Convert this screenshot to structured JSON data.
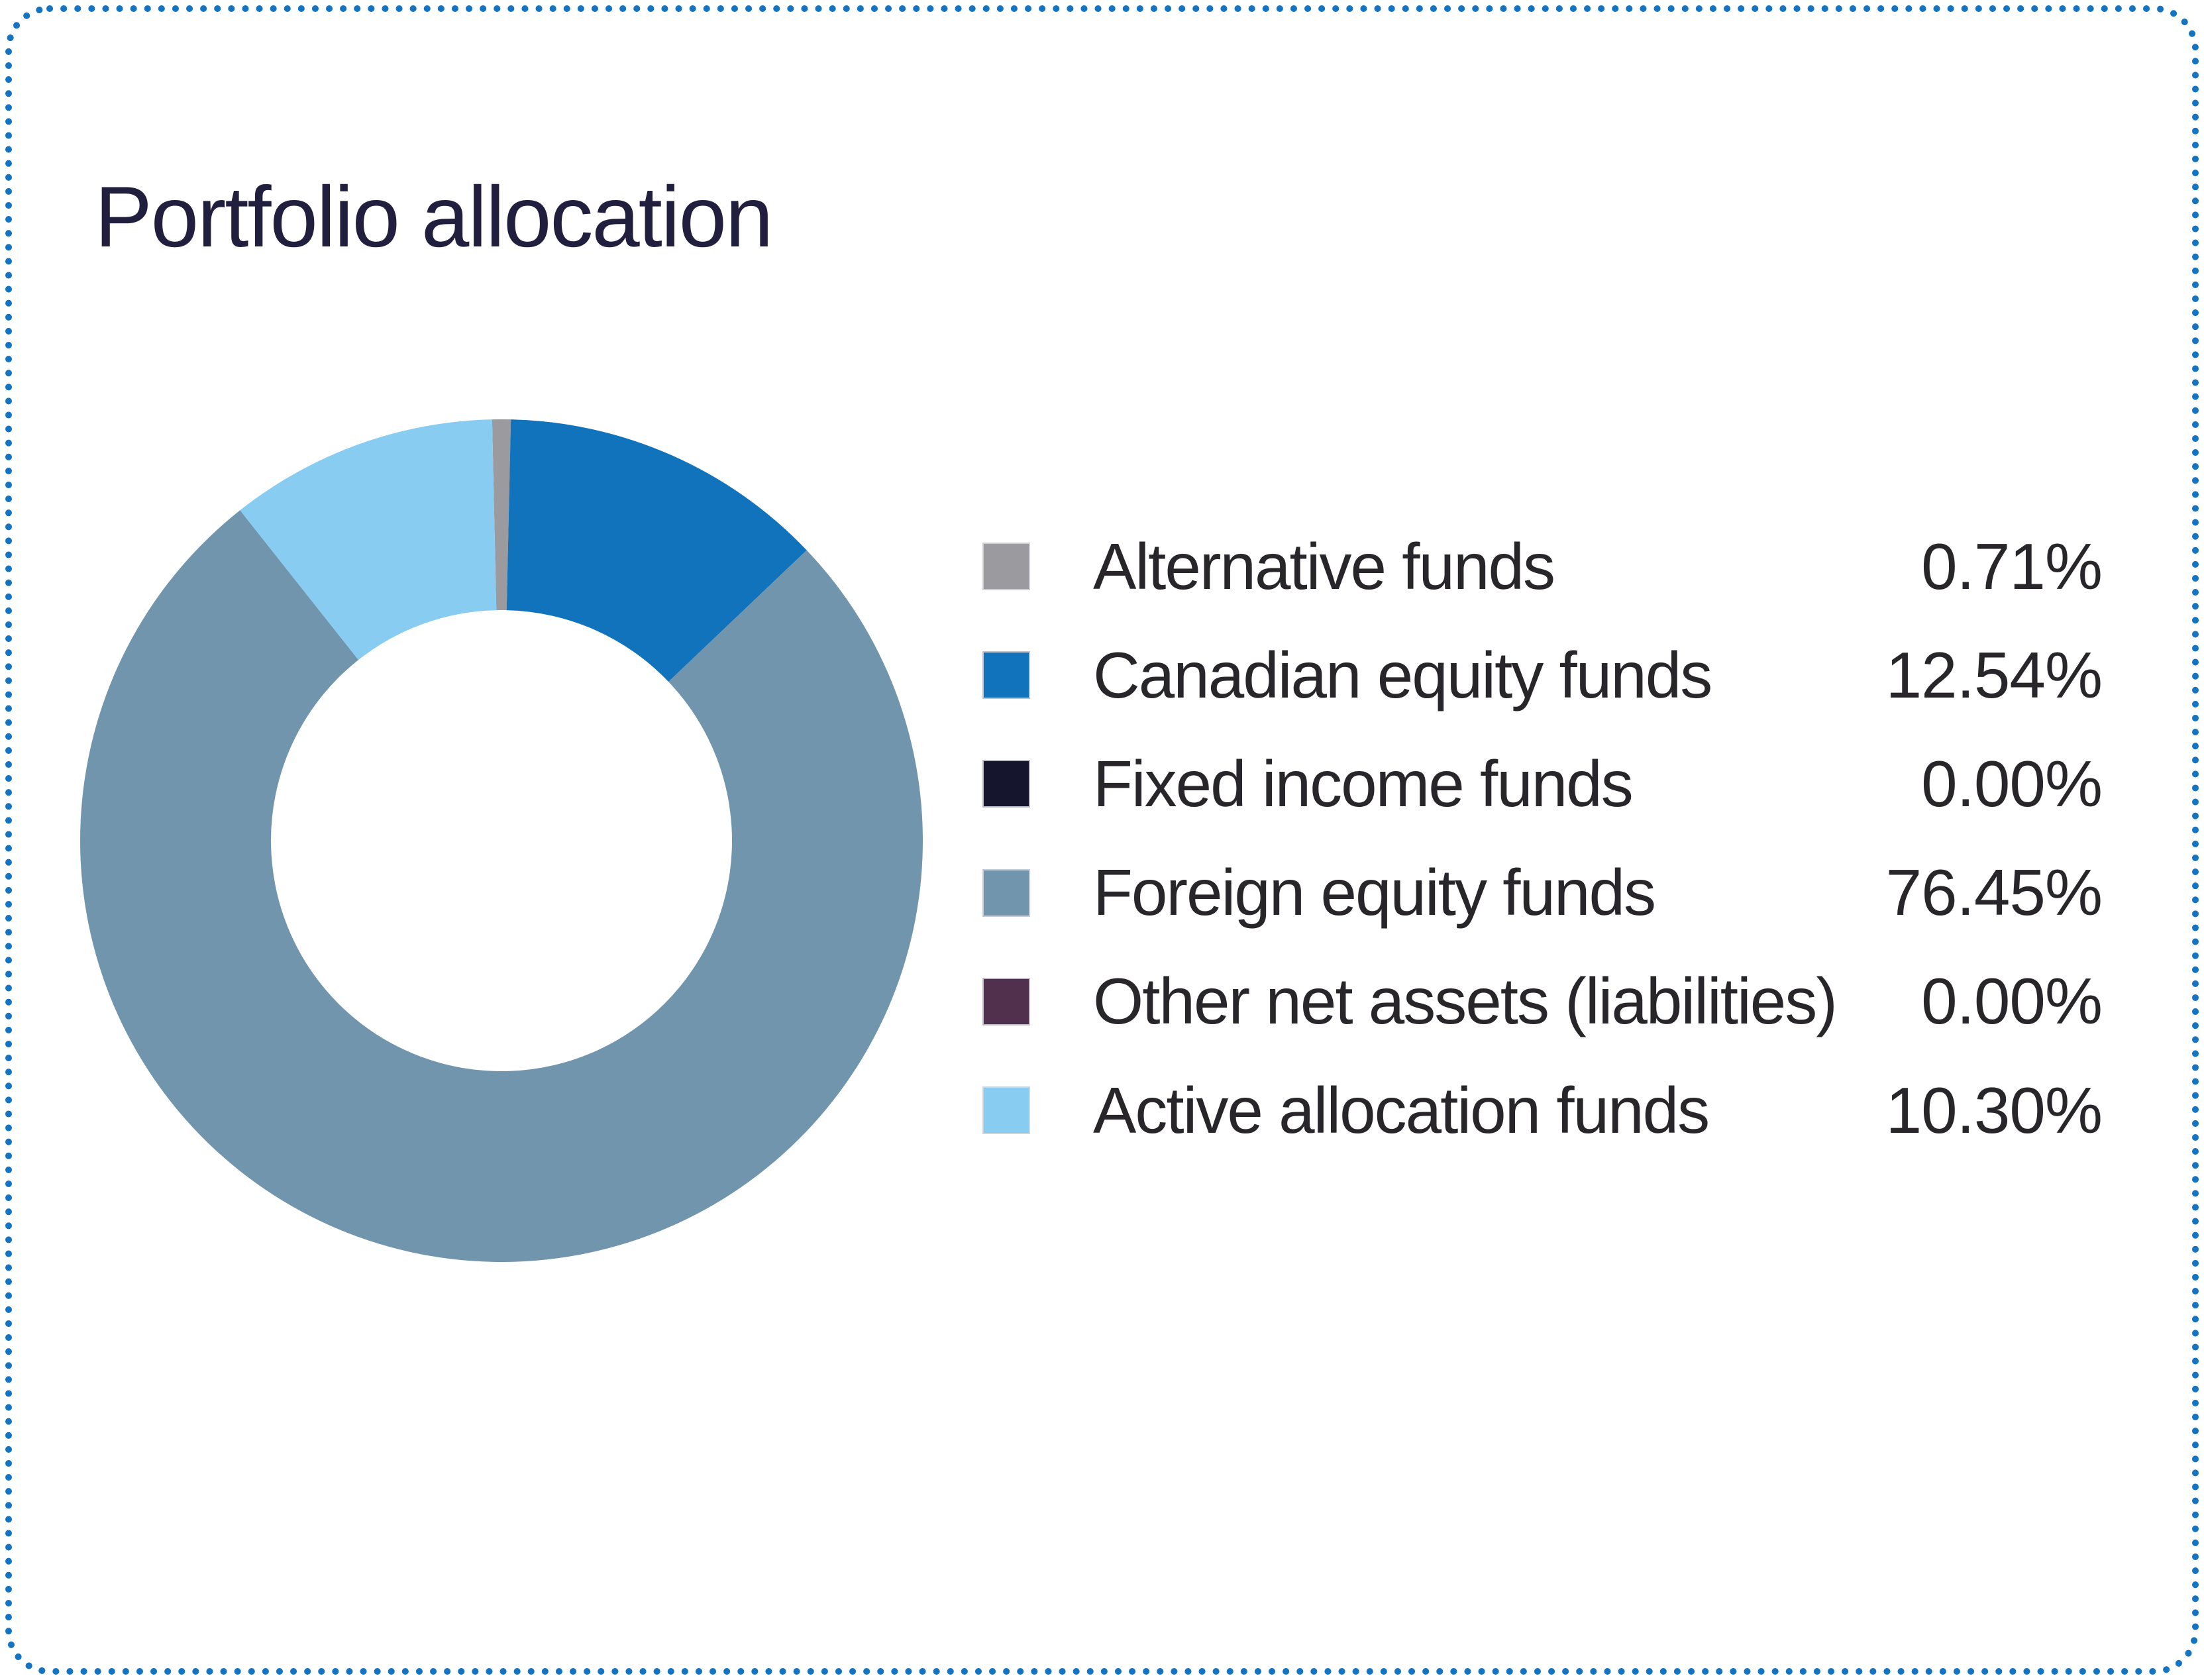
{
  "title": "Portfolio allocation",
  "card": {
    "border_color": "#1474c2",
    "background_color": "#ffffff",
    "border_style": "round-dotted"
  },
  "chart_data": {
    "type": "pie",
    "donut": true,
    "title": "Portfolio allocation",
    "legend_position": "right",
    "grid": false,
    "inner_radius_ratio": 0.547,
    "first_slice_centered_at_top": true,
    "categories": [
      "Alternative funds",
      "Canadian equity funds",
      "Fixed income funds",
      "Foreign equity funds",
      "Other net assets (liabilities)",
      "Active allocation funds"
    ],
    "values": [
      0.71,
      12.54,
      0.0,
      76.45,
      0.0,
      10.3
    ],
    "display_values": [
      "0.71%",
      "12.54%",
      "0.00%",
      "76.45%",
      "0.00%",
      "10.30%"
    ],
    "colors": [
      "#9b9b9f",
      "#1073bc",
      "#16152e",
      "#7195ac",
      "#51304d",
      "#88ccf2"
    ]
  },
  "legend": {
    "items": [
      {
        "label": "Alternative funds",
        "value": "0.71%",
        "color": "#9b9b9f"
      },
      {
        "label": "Canadian equity funds",
        "value": "12.54%",
        "color": "#1073bc"
      },
      {
        "label": "Fixed income funds",
        "value": "0.00%",
        "color": "#16152e"
      },
      {
        "label": "Foreign equity funds",
        "value": "76.45%",
        "color": "#7195ac"
      },
      {
        "label": "Other net assets (liabilities)",
        "value": "0.00%",
        "color": "#51304d"
      },
      {
        "label": "Active allocation funds",
        "value": "10.30%",
        "color": "#88ccf2"
      }
    ],
    "text_color": "#28262a"
  }
}
